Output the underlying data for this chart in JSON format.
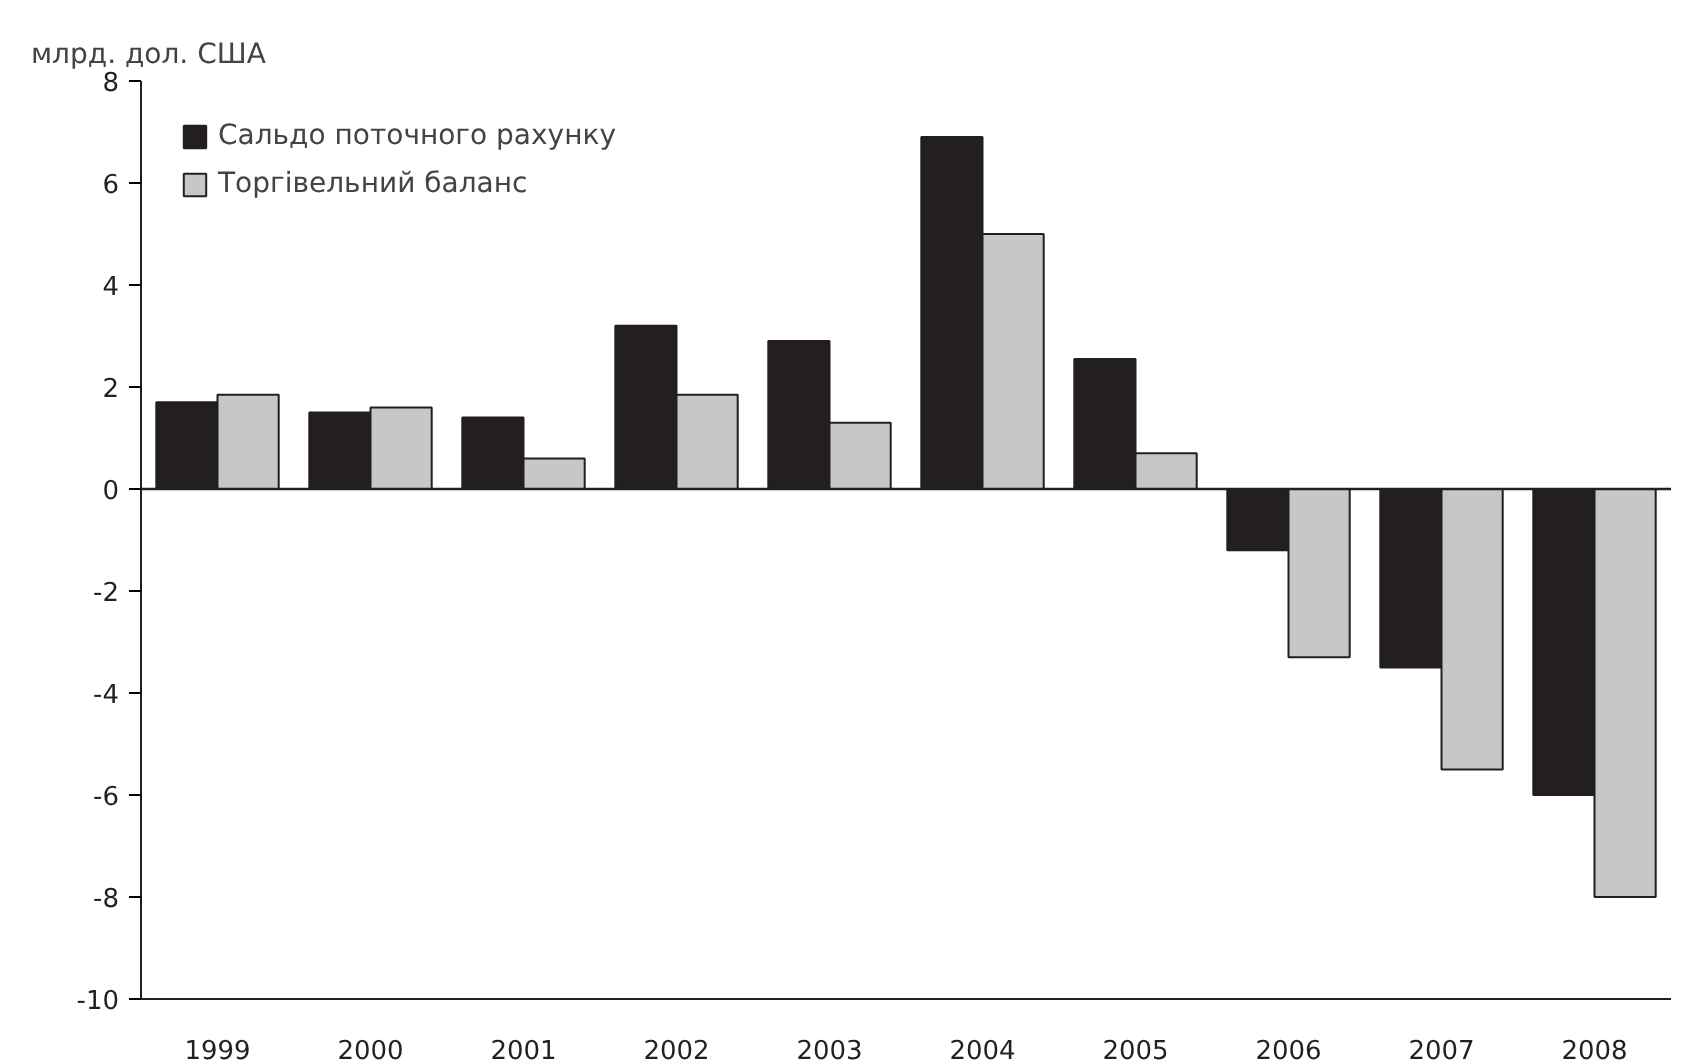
{
  "chart_data": {
    "type": "bar",
    "ylabel": "млрд. дол. США",
    "categories": [
      "1999",
      "2000",
      "2001",
      "2002",
      "2003",
      "2004",
      "2005",
      "2006",
      "2007",
      "2008"
    ],
    "series": [
      {
        "name": "Сальдо поточного рахунку",
        "color": "#231f20",
        "values": [
          1.7,
          1.5,
          1.4,
          3.2,
          2.9,
          6.9,
          2.55,
          -1.2,
          -3.5,
          -6.0
        ]
      },
      {
        "name": "Торгівельний баланс",
        "color": "#c6c7c9",
        "values": [
          1.85,
          1.6,
          0.6,
          1.85,
          1.3,
          5.0,
          0.7,
          -3.3,
          -5.5,
          -8.0
        ]
      }
    ],
    "ylim": [
      -10,
      8
    ],
    "yticks": [
      -10,
      -8,
      -6,
      -4,
      -2,
      0,
      2,
      4,
      6,
      8
    ],
    "legend": "top left"
  }
}
